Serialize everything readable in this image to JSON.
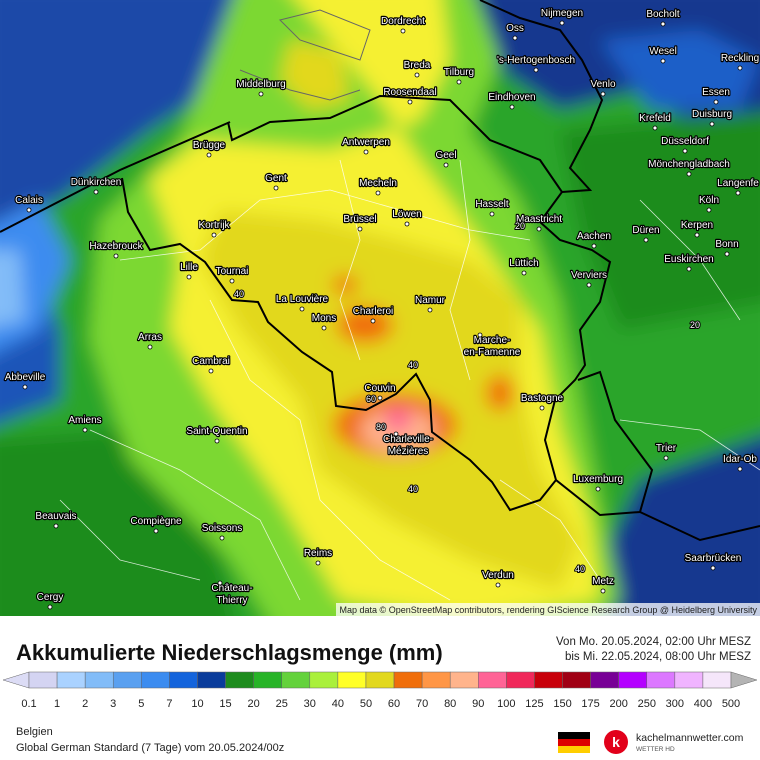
{
  "map": {
    "cities": [
      "Dordrecht",
      "Nijmegen",
      "Bocholt",
      "Oss",
      "Wesel",
      "Reckling",
      "Breda",
      "Tilburg",
      "'s-Hertogenbosch",
      "Middelburg",
      "Roosendaal",
      "Eindhoven",
      "Venlo",
      "Essen",
      "Duisburg",
      "Krefeld",
      "Antwerpen",
      "Düsseldorf",
      "Brügge",
      "Geel",
      "Mönchengladbach",
      "Gent",
      "Mecheln",
      "Dünkirchen",
      "Langenfe",
      "Calais",
      "Hasselt",
      "Köln",
      "Brüssel",
      "Löwen",
      "Maastricht",
      "Kortrijk",
      "Düren",
      "Kerpen",
      "Aachen",
      "Hazebrouck",
      "Bonn",
      "Lüttich",
      "Euskirchen",
      "Lille",
      "Tournai",
      "Verviers",
      "La Louvière",
      "Namur",
      "Charleroi",
      "Mons",
      "Arras",
      [
        "Marche-",
        "en-Famenne"
      ],
      "Cambrai",
      "Abbeville",
      "Couvin",
      "Bastogne",
      "Amiens",
      "Trier",
      "Saint-Quentin",
      [
        "Charleville-",
        "Mézières"
      ],
      "Idar-Ob",
      "Luxemburg",
      "Beauvais",
      "Compiègne",
      "Soissons",
      "Saarbrücken",
      "Reims",
      "Verdun",
      [
        "Château-",
        "Thierry"
      ],
      "Metz",
      "Cergy"
    ],
    "contour_labels": [
      40,
      40,
      40,
      40,
      60,
      80,
      20,
      20
    ],
    "attribution": "Map data © OpenStreetMap contributors, rendering GIScience Research Group @ Heidelberg University"
  },
  "footer": {
    "title": "Akkumulierte Niederschlagsmenge (mm)",
    "period_from": "Von Mo. 20.05.2024, 02:00 Uhr MESZ",
    "period_to": "bis Mi. 22.05.2024, 08:00 Uhr MESZ",
    "region": "Belgien",
    "model": "Global German Standard (7 Tage) vom 20.05.2024/00z",
    "brand": "kachelmannwetter.com",
    "brand_sub": "WETTER HD"
  },
  "legend": {
    "labels": [
      0.1,
      1,
      2,
      3,
      5,
      7,
      10,
      15,
      20,
      25,
      30,
      40,
      50,
      60,
      70,
      80,
      90,
      100,
      125,
      150,
      175,
      200,
      250,
      300,
      400,
      500
    ],
    "colors": [
      "#d4d4f2",
      "#aad2ff",
      "#82bcf8",
      "#5aa0f0",
      "#3c8cf0",
      "#1464dc",
      "#0a3c9b",
      "#1e8c1e",
      "#28b428",
      "#64d23c",
      "#aaf03c",
      "#ffff28",
      "#e2d81e",
      "#f06e0a",
      "#ff9646",
      "#ffb48c",
      "#ff6496",
      "#f0285a",
      "#c8000a",
      "#a00014",
      "#780096",
      "#b400ff",
      "#dc78ff",
      "#f0b4ff",
      "#f5e6fa"
    ],
    "below_color": "#dcdcf5",
    "above_color": "#b4b4b4"
  }
}
